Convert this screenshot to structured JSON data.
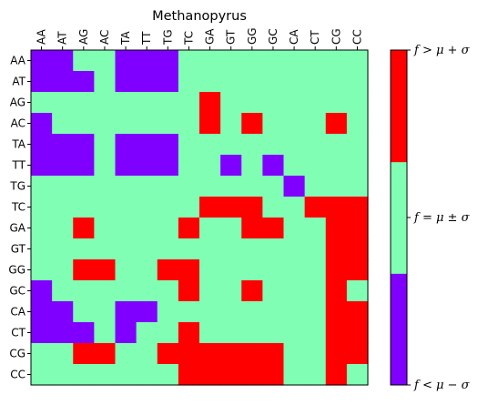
{
  "chart_data": {
    "type": "heatmap",
    "title": "Methanopyrus",
    "x_labels": [
      "AA",
      "AT",
      "AG",
      "AC",
      "TA",
      "TT",
      "TG",
      "TC",
      "GA",
      "GT",
      "GG",
      "GC",
      "CA",
      "CT",
      "CG",
      "CC"
    ],
    "y_labels": [
      "AA",
      "AT",
      "AG",
      "AC",
      "TA",
      "TT",
      "TG",
      "TC",
      "GA",
      "GT",
      "GG",
      "GC",
      "CA",
      "CT",
      "CG",
      "CC"
    ],
    "value_legend": {
      "0": "below",
      "1": "within",
      "2": "above"
    },
    "matrix": [
      [
        0,
        0,
        1,
        1,
        0,
        0,
        0,
        1,
        1,
        1,
        1,
        1,
        1,
        1,
        1,
        1
      ],
      [
        0,
        0,
        0,
        1,
        0,
        0,
        0,
        1,
        1,
        1,
        1,
        1,
        1,
        1,
        1,
        1
      ],
      [
        1,
        1,
        1,
        1,
        1,
        1,
        1,
        1,
        2,
        1,
        1,
        1,
        1,
        1,
        1,
        1
      ],
      [
        0,
        1,
        1,
        1,
        1,
        1,
        1,
        1,
        2,
        1,
        2,
        1,
        1,
        1,
        2,
        1
      ],
      [
        0,
        0,
        0,
        1,
        0,
        0,
        0,
        1,
        1,
        1,
        1,
        1,
        1,
        1,
        1,
        1
      ],
      [
        0,
        0,
        0,
        1,
        0,
        0,
        0,
        1,
        1,
        0,
        1,
        0,
        1,
        1,
        1,
        1
      ],
      [
        1,
        1,
        1,
        1,
        1,
        1,
        1,
        1,
        1,
        1,
        1,
        1,
        0,
        1,
        1,
        1
      ],
      [
        1,
        1,
        1,
        1,
        1,
        1,
        1,
        1,
        2,
        2,
        2,
        1,
        1,
        2,
        2,
        2
      ],
      [
        1,
        1,
        2,
        1,
        1,
        1,
        1,
        2,
        1,
        1,
        2,
        2,
        1,
        1,
        2,
        2
      ],
      [
        1,
        1,
        1,
        1,
        1,
        1,
        1,
        1,
        1,
        1,
        1,
        1,
        1,
        1,
        2,
        2
      ],
      [
        1,
        1,
        2,
        2,
        1,
        1,
        2,
        2,
        1,
        1,
        1,
        1,
        1,
        1,
        2,
        2
      ],
      [
        0,
        1,
        1,
        1,
        1,
        1,
        1,
        2,
        1,
        1,
        2,
        1,
        1,
        1,
        2,
        1
      ],
      [
        0,
        0,
        1,
        1,
        0,
        0,
        1,
        1,
        1,
        1,
        1,
        1,
        1,
        1,
        2,
        2
      ],
      [
        0,
        0,
        0,
        1,
        0,
        1,
        1,
        2,
        1,
        1,
        1,
        1,
        1,
        1,
        2,
        2
      ],
      [
        1,
        1,
        2,
        2,
        1,
        1,
        2,
        2,
        2,
        2,
        2,
        2,
        1,
        1,
        2,
        2
      ],
      [
        1,
        1,
        1,
        1,
        1,
        1,
        1,
        2,
        2,
        2,
        2,
        2,
        1,
        1,
        2,
        1
      ]
    ],
    "colorbar": {
      "categories": [
        {
          "value": 0,
          "color": "#8000ff",
          "label": "f < μ − σ"
        },
        {
          "value": 1,
          "color": "#80ffb4",
          "label": "f = μ ± σ"
        },
        {
          "value": 2,
          "color": "#ff0000",
          "label": "f > μ + σ"
        }
      ]
    }
  }
}
